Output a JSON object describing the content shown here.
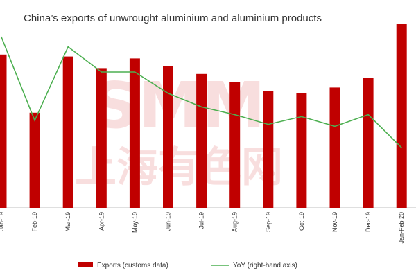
{
  "chart_data": {
    "type": "bar",
    "title": "China’s exports of unwrought aluminium and aluminium products",
    "categories": [
      "Jan-19",
      "Feb-19",
      "Mar-19",
      "Apr-19",
      "May-19",
      "Jun-19",
      "Jul-19",
      "Aug-19",
      "Sep-19",
      "Oct-19",
      "Nov-19",
      "Dec-19",
      "Jan-Feb 20"
    ],
    "series": [
      {
        "name": "Exports (customs data)",
        "type": "bar",
        "axis": "left",
        "color": "#c00000",
        "values": [
          79,
          49,
          78,
          72,
          77,
          73,
          69,
          65,
          60,
          59,
          62,
          67,
          95
        ]
      },
      {
        "name": "YoY (right-hand axis)",
        "type": "line",
        "axis": "right",
        "color": "#4caf50",
        "values": [
          88,
          45,
          83,
          70,
          70,
          59,
          52,
          48,
          43,
          47,
          42,
          48,
          31
        ]
      }
    ],
    "ylim": [
      0,
      100
    ],
    "y2lim": [
      0,
      100
    ],
    "legend_position": "bottom",
    "grid": false
  },
  "watermark": {
    "latin": "SMM",
    "chinese": "上海有色网",
    "color": "#d42020"
  }
}
